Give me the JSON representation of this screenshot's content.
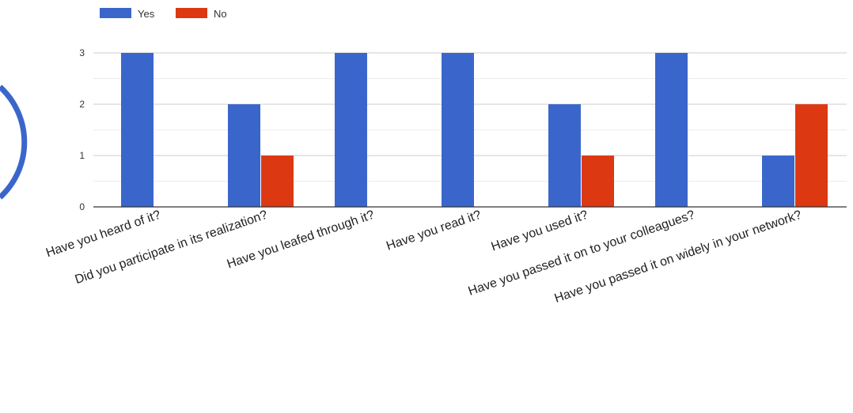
{
  "chart_data": {
    "type": "bar",
    "title": "",
    "xlabel": "",
    "ylabel": "",
    "categories": [
      "Have you heard of it?",
      "Did you participate in its realization?",
      "Have you leafed through it?",
      "Have you read it?",
      "Have you used it?",
      "Have you passed it on to your colleagues?",
      "Have you passed it on widely in your network?"
    ],
    "series": [
      {
        "name": "Yes",
        "color": "#3a66cc",
        "values": [
          3,
          2,
          3,
          3,
          2,
          3,
          1
        ]
      },
      {
        "name": "No",
        "color": "#dc3912",
        "values": [
          0,
          1,
          0,
          0,
          1,
          0,
          2
        ]
      }
    ],
    "ylim": [
      0,
      3
    ],
    "yticks": [
      "0",
      "1",
      "2",
      "3"
    ],
    "grid": true,
    "legend_position": "top-left"
  }
}
